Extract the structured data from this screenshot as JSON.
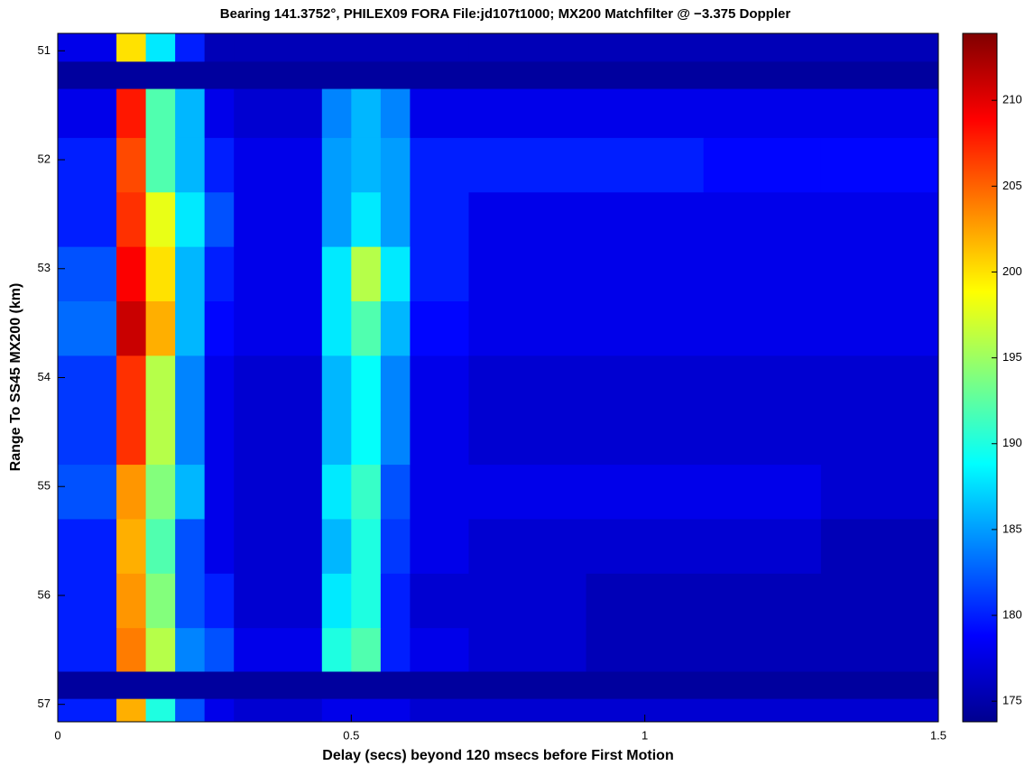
{
  "chart_data": {
    "type": "heatmap",
    "title": "Bearing 141.3752°, PHILEX09 FORA File:jd107t1000; MX200 Matchfilter @ −3.375 Doppler",
    "x_label": "Delay (secs) beyond 120 msecs before First Motion",
    "y_label": "Range To SS45 MX200 (km)",
    "xbins": [
      0,
      0.1,
      0.15,
      0.2,
      0.25,
      0.3,
      0.45,
      0.5,
      0.55,
      0.6,
      0.7,
      0.9,
      1.1,
      1.3,
      1.5
    ],
    "ybins": [
      50.84,
      51.1,
      51.35,
      51.8,
      52.3,
      52.8,
      53.3,
      53.8,
      54.3,
      54.8,
      55.3,
      55.8,
      56.3,
      56.7,
      56.95,
      57.16
    ],
    "values": [
      [
        178,
        200,
        188,
        180,
        176,
        176,
        176,
        176,
        176,
        176,
        176,
        176,
        176,
        176
      ],
      [
        175,
        175,
        175,
        175,
        175,
        175,
        175,
        175,
        175,
        175,
        175,
        175,
        175,
        175
      ],
      [
        178,
        208,
        192,
        186,
        178,
        177,
        184,
        186,
        184,
        178,
        178,
        178,
        178,
        178
      ],
      [
        180,
        206,
        192,
        186,
        180,
        178,
        185,
        186,
        185,
        180,
        180,
        180,
        179,
        179
      ],
      [
        180,
        207,
        198,
        188,
        182,
        178,
        185,
        188,
        185,
        180,
        178,
        178,
        178,
        178
      ],
      [
        182,
        209,
        200,
        186,
        180,
        178,
        188,
        196,
        188,
        180,
        178,
        178,
        178,
        178
      ],
      [
        183,
        211,
        202,
        186,
        179,
        178,
        188,
        192,
        186,
        179,
        178,
        178,
        178,
        178
      ],
      [
        181,
        207,
        196,
        184,
        178,
        177,
        186,
        189,
        184,
        178,
        177,
        177,
        177,
        177
      ],
      [
        181,
        207,
        196,
        184,
        178,
        177,
        186,
        189,
        184,
        178,
        177,
        177,
        177,
        177
      ],
      [
        182,
        203,
        194,
        186,
        178,
        177,
        188,
        191,
        182,
        178,
        178,
        178,
        178,
        177
      ],
      [
        180,
        202,
        192,
        182,
        178,
        177,
        186,
        190,
        181,
        178,
        177,
        177,
        177,
        176
      ],
      [
        180,
        203,
        194,
        182,
        180,
        177,
        188,
        190,
        180,
        177,
        177,
        176,
        176,
        176
      ],
      [
        180,
        204,
        196,
        184,
        182,
        178,
        190,
        192,
        180,
        178,
        177,
        176,
        176,
        176
      ],
      [
        175,
        175,
        175,
        175,
        175,
        175,
        175,
        175,
        175,
        175,
        175,
        175,
        175,
        175
      ],
      [
        180,
        202,
        190,
        182,
        178,
        177,
        178,
        178,
        178,
        177,
        177,
        177,
        177,
        177
      ]
    ],
    "xlim": [
      0,
      1.5
    ],
    "xticks": [
      0,
      0.5,
      1,
      1.5
    ],
    "ylim": [
      50.84,
      57.16
    ],
    "yticks": [
      51,
      52,
      53,
      54,
      55,
      56,
      57
    ],
    "y_reversed": true,
    "zlim": [
      173.8,
      213.9
    ],
    "zticks": [
      175,
      180,
      185,
      190,
      195,
      200,
      205,
      210
    ],
    "colormap": "jet"
  }
}
